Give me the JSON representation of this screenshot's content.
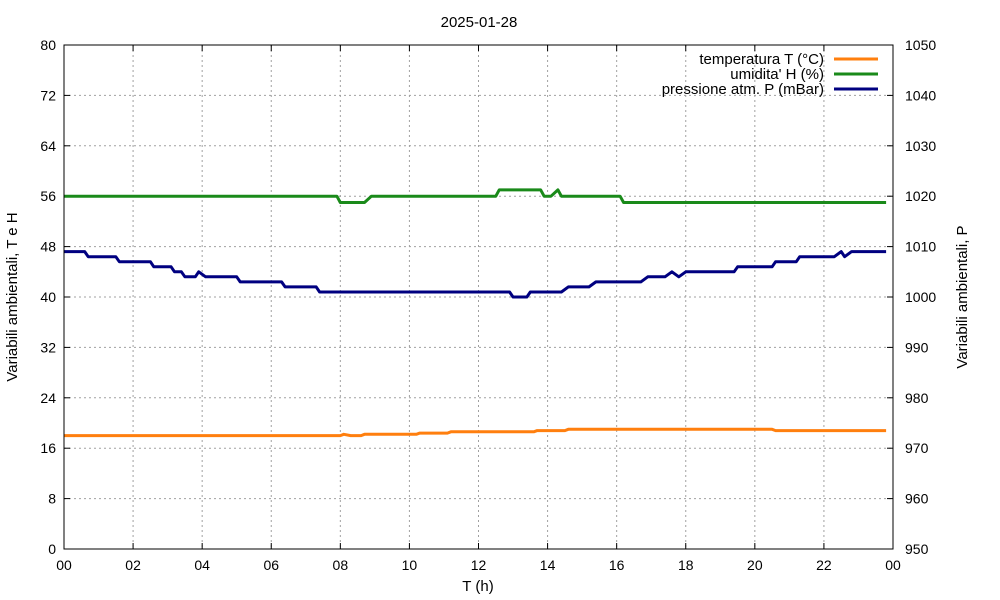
{
  "chart_data": {
    "type": "line",
    "title": "2025-01-28",
    "xlabel": "T (h)",
    "ylabel_left": "Variabili ambientali, T e H",
    "ylabel_right": "Variabili ambientali, P",
    "xlim": [
      0,
      24
    ],
    "ylim_left": [
      0,
      80
    ],
    "ylim_right": [
      950,
      1050
    ],
    "grid": true,
    "legend_position": "top-right",
    "x_tick_labels": [
      "00",
      "02",
      "04",
      "06",
      "08",
      "10",
      "12",
      "14",
      "16",
      "18",
      "20",
      "22",
      "00"
    ],
    "y_left_ticks": [
      0,
      8,
      16,
      24,
      32,
      40,
      48,
      56,
      64,
      72,
      80
    ],
    "y_right_ticks": [
      950,
      960,
      970,
      980,
      990,
      1000,
      1010,
      1020,
      1030,
      1040,
      1050
    ],
    "series": [
      {
        "name": "temperatura T (°C)",
        "axis": "left",
        "color": "#ff7f0e",
        "x": [
          0,
          8.0,
          8.1,
          8.3,
          8.6,
          8.7,
          10.2,
          10.3,
          11.1,
          11.2,
          13.6,
          13.7,
          14.5,
          14.6,
          20.5,
          20.6,
          23.8
        ],
        "y": [
          18.0,
          18.0,
          18.2,
          18.0,
          18.0,
          18.2,
          18.2,
          18.4,
          18.4,
          18.6,
          18.6,
          18.8,
          18.8,
          19.0,
          19.0,
          18.8,
          18.8
        ]
      },
      {
        "name": "umidita' H (%)",
        "axis": "left",
        "color": "#1a8a1a",
        "x": [
          0,
          7.9,
          8.0,
          8.7,
          8.9,
          12.5,
          12.6,
          13.8,
          13.9,
          14.1,
          14.3,
          14.4,
          16.1,
          16.2,
          23.8
        ],
        "y": [
          56.0,
          56.0,
          55.0,
          55.0,
          56.0,
          56.0,
          57.0,
          57.0,
          56.0,
          56.0,
          57.0,
          56.0,
          56.0,
          55.0,
          55.0
        ]
      },
      {
        "name": "pressione atm. P (mBar)",
        "axis": "right",
        "color": "#000080",
        "x": [
          0,
          0.6,
          0.7,
          1.5,
          1.6,
          2.5,
          2.6,
          3.1,
          3.2,
          3.4,
          3.5,
          3.8,
          3.9,
          4.1,
          4.2,
          5.0,
          5.1,
          6.3,
          6.4,
          7.3,
          7.4,
          12.9,
          13.0,
          13.4,
          13.5,
          14.4,
          14.6,
          15.2,
          15.4,
          16.7,
          16.9,
          17.4,
          17.6,
          17.8,
          18.0,
          19.4,
          19.5,
          20.5,
          20.6,
          21.2,
          21.3,
          22.3,
          22.5,
          22.6,
          22.8,
          23.8
        ],
        "y": [
          1009,
          1009,
          1008,
          1008,
          1007,
          1007,
          1006,
          1006,
          1005,
          1005,
          1004,
          1004,
          1005,
          1004,
          1004,
          1004,
          1003,
          1003,
          1002,
          1002,
          1001,
          1001,
          1000,
          1000,
          1001,
          1001,
          1002,
          1002,
          1003,
          1003,
          1004,
          1004,
          1005,
          1004,
          1005,
          1005,
          1006,
          1006,
          1007,
          1007,
          1008,
          1008,
          1009,
          1008,
          1009,
          1009
        ]
      }
    ]
  }
}
